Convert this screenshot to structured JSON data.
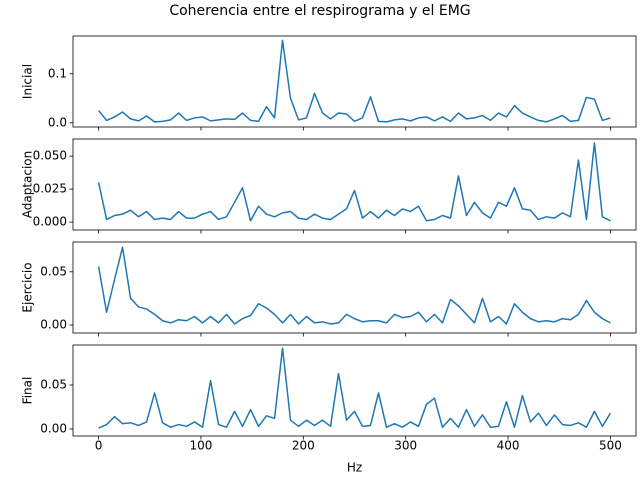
{
  "title": "Coherencia entre el respirograma y el EMG",
  "chart_data": [
    {
      "type": "line",
      "ylabel": "Inicial",
      "color": "#1f77b4",
      "x": [
        0,
        7.8125,
        15.625,
        23.4375,
        31.25,
        39.0625,
        46.875,
        54.6875,
        62.5,
        70.3125,
        78.125,
        85.9375,
        93.75,
        101.5625,
        109.375,
        117.1875,
        125,
        132.8125,
        140.625,
        148.4375,
        156.25,
        164.0625,
        171.875,
        179.6875,
        187.5,
        195.3125,
        203.125,
        210.9375,
        218.75,
        226.5625,
        234.375,
        242.1875,
        250,
        257.8125,
        265.625,
        273.4375,
        281.25,
        289.0625,
        296.875,
        304.6875,
        312.5,
        320.3125,
        328.125,
        335.9375,
        343.75,
        351.5625,
        359.375,
        367.1875,
        375,
        382.8125,
        390.625,
        398.4375,
        406.25,
        414.0625,
        421.875,
        429.6875,
        437.5,
        445.3125,
        453.125,
        460.9375,
        468.75,
        476.5625,
        484.375,
        492.1875,
        500
      ],
      "values": [
        0.025,
        0.005,
        0.012,
        0.022,
        0.008,
        0.004,
        0.014,
        0.002,
        0.003,
        0.006,
        0.02,
        0.005,
        0.01,
        0.012,
        0.004,
        0.006,
        0.008,
        0.007,
        0.02,
        0.005,
        0.003,
        0.033,
        0.01,
        0.168,
        0.05,
        0.006,
        0.01,
        0.06,
        0.02,
        0.008,
        0.02,
        0.018,
        0.003,
        0.01,
        0.053,
        0.003,
        0.002,
        0.006,
        0.008,
        0.004,
        0.01,
        0.012,
        0.004,
        0.012,
        0.003,
        0.02,
        0.008,
        0.01,
        0.015,
        0.005,
        0.02,
        0.012,
        0.035,
        0.02,
        0.012,
        0.005,
        0.002,
        0.008,
        0.015,
        0.003,
        0.005,
        0.052,
        0.048,
        0.005,
        0.01
      ],
      "xlim": [
        -25,
        525
      ],
      "xticks": [
        0,
        100,
        200,
        300,
        400,
        500
      ],
      "ylim": [
        -0.0085,
        0.177
      ],
      "yticks": [
        {
          "value": 0,
          "label": "0.0"
        },
        0.1
      ]
    },
    {
      "type": "line",
      "ylabel": "Adaptacion",
      "color": "#1f77b4",
      "x": [
        0,
        7.8125,
        15.625,
        23.4375,
        31.25,
        39.0625,
        46.875,
        54.6875,
        62.5,
        70.3125,
        78.125,
        85.9375,
        93.75,
        101.5625,
        109.375,
        117.1875,
        125,
        132.8125,
        140.625,
        148.4375,
        156.25,
        164.0625,
        171.875,
        179.6875,
        187.5,
        195.3125,
        203.125,
        210.9375,
        218.75,
        226.5625,
        234.375,
        242.1875,
        250,
        257.8125,
        265.625,
        273.4375,
        281.25,
        289.0625,
        296.875,
        304.6875,
        312.5,
        320.3125,
        328.125,
        335.9375,
        343.75,
        351.5625,
        359.375,
        367.1875,
        375,
        382.8125,
        390.625,
        398.4375,
        406.25,
        414.0625,
        421.875,
        429.6875,
        437.5,
        445.3125,
        453.125,
        460.9375,
        468.75,
        476.5625,
        484.375,
        492.1875,
        500
      ],
      "values": [
        0.03,
        0.002,
        0.005,
        0.006,
        0.009,
        0.004,
        0.008,
        0.002,
        0.003,
        0.002,
        0.008,
        0.003,
        0.003,
        0.006,
        0.008,
        0.002,
        0.004,
        0.015,
        0.026,
        0.001,
        0.012,
        0.006,
        0.004,
        0.007,
        0.008,
        0.003,
        0.002,
        0.006,
        0.003,
        0.002,
        0.006,
        0.01,
        0.024,
        0.003,
        0.008,
        0.003,
        0.009,
        0.005,
        0.01,
        0.008,
        0.012,
        0.001,
        0.002,
        0.005,
        0.003,
        0.035,
        0.005,
        0.015,
        0.007,
        0.003,
        0.015,
        0.012,
        0.026,
        0.01,
        0.009,
        0.002,
        0.004,
        0.003,
        0.007,
        0.004,
        0.047,
        0.002,
        0.06,
        0.004,
        0.001
      ],
      "xlim": [
        -25,
        525
      ],
      "xticks": [
        0,
        100,
        200,
        300,
        400,
        500
      ],
      "ylim": [
        -0.006,
        0.063
      ],
      "yticks": [
        {
          "value": 0,
          "label": "0.000"
        },
        {
          "value": 0.025,
          "label": "0.025"
        },
        {
          "value": 0.05,
          "label": "0.050"
        }
      ]
    },
    {
      "type": "line",
      "ylabel": "Ejercicio",
      "color": "#1f77b4",
      "x": [
        0,
        7.8125,
        15.625,
        23.4375,
        31.25,
        39.0625,
        46.875,
        54.6875,
        62.5,
        70.3125,
        78.125,
        85.9375,
        93.75,
        101.5625,
        109.375,
        117.1875,
        125,
        132.8125,
        140.625,
        148.4375,
        156.25,
        164.0625,
        171.875,
        179.6875,
        187.5,
        195.3125,
        203.125,
        210.9375,
        218.75,
        226.5625,
        234.375,
        242.1875,
        250,
        257.8125,
        265.625,
        273.4375,
        281.25,
        289.0625,
        296.875,
        304.6875,
        312.5,
        320.3125,
        328.125,
        335.9375,
        343.75,
        351.5625,
        359.375,
        367.1875,
        375,
        382.8125,
        390.625,
        398.4375,
        406.25,
        414.0625,
        421.875,
        429.6875,
        437.5,
        445.3125,
        453.125,
        460.9375,
        468.75,
        476.5625,
        484.375,
        492.1875,
        500
      ],
      "values": [
        0.055,
        0.012,
        0.043,
        0.073,
        0.025,
        0.017,
        0.015,
        0.01,
        0.004,
        0.002,
        0.005,
        0.004,
        0.008,
        0.002,
        0.008,
        0.002,
        0.01,
        0.001,
        0.006,
        0.009,
        0.02,
        0.016,
        0.01,
        0.002,
        0.01,
        0.001,
        0.008,
        0.002,
        0.003,
        0.001,
        0.002,
        0.01,
        0.006,
        0.003,
        0.004,
        0.004,
        0.002,
        0.01,
        0.007,
        0.008,
        0.012,
        0.003,
        0.01,
        0.002,
        0.024,
        0.018,
        0.01,
        0.002,
        0.025,
        0.003,
        0.008,
        0.001,
        0.02,
        0.012,
        0.006,
        0.003,
        0.004,
        0.003,
        0.006,
        0.005,
        0.01,
        0.023,
        0.012,
        0.006,
        0.002
      ],
      "xlim": [
        -25,
        525
      ],
      "xticks": [
        0,
        100,
        200,
        300,
        400,
        500
      ],
      "ylim": [
        -0.0075,
        0.078
      ],
      "yticks": [
        {
          "value": 0,
          "label": "0.00"
        },
        {
          "value": 0.05,
          "label": "0.05"
        }
      ]
    },
    {
      "type": "line",
      "ylabel": "Final",
      "xlabel": "Hz",
      "color": "#1f77b4",
      "x": [
        0,
        7.8125,
        15.625,
        23.4375,
        31.25,
        39.0625,
        46.875,
        54.6875,
        62.5,
        70.3125,
        78.125,
        85.9375,
        93.75,
        101.5625,
        109.375,
        117.1875,
        125,
        132.8125,
        140.625,
        148.4375,
        156.25,
        164.0625,
        171.875,
        179.6875,
        187.5,
        195.3125,
        203.125,
        210.9375,
        218.75,
        226.5625,
        234.375,
        242.1875,
        250,
        257.8125,
        265.625,
        273.4375,
        281.25,
        289.0625,
        296.875,
        304.6875,
        312.5,
        320.3125,
        328.125,
        335.9375,
        343.75,
        351.5625,
        359.375,
        367.1875,
        375,
        382.8125,
        390.625,
        398.4375,
        406.25,
        414.0625,
        421.875,
        429.6875,
        437.5,
        445.3125,
        453.125,
        460.9375,
        468.75,
        476.5625,
        484.375,
        492.1875,
        500
      ],
      "values": [
        0.001,
        0.005,
        0.014,
        0.006,
        0.007,
        0.004,
        0.008,
        0.041,
        0.007,
        0.002,
        0.005,
        0.003,
        0.008,
        0.002,
        0.055,
        0.005,
        0.002,
        0.02,
        0.003,
        0.022,
        0.003,
        0.015,
        0.012,
        0.092,
        0.01,
        0.003,
        0.01,
        0.004,
        0.01,
        0.003,
        0.063,
        0.01,
        0.02,
        0.003,
        0.004,
        0.041,
        0.002,
        0.006,
        0.002,
        0.008,
        0.003,
        0.028,
        0.035,
        0.002,
        0.012,
        0.002,
        0.022,
        0.003,
        0.016,
        0.002,
        0.003,
        0.031,
        0.002,
        0.038,
        0.008,
        0.018,
        0.004,
        0.016,
        0.005,
        0.004,
        0.007,
        0.002,
        0.02,
        0.003,
        0.018
      ],
      "xlim": [
        -25,
        525
      ],
      "xticks": [
        0,
        100,
        200,
        300,
        400,
        500
      ],
      "ylim": [
        -0.008,
        0.0955
      ],
      "yticks": [
        {
          "value": 0,
          "label": "0.00"
        },
        {
          "value": 0.05,
          "label": "0.05"
        }
      ]
    }
  ]
}
